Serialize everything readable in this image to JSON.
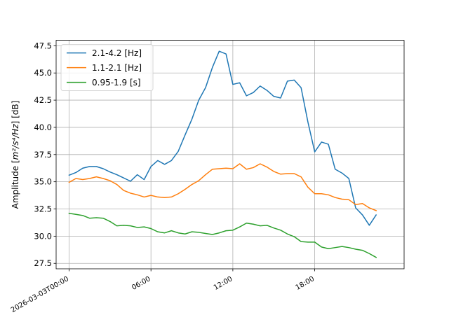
{
  "chart_data": {
    "type": "line",
    "title": "",
    "xlabel": "",
    "ylabel_main": "Amplitude [",
    "ylabel_unit": "m²/s⁴/Hz",
    "ylabel_end": "] [dB]",
    "xlim": [
      "2026-03-02T23:03:00",
      "2026-03-04T00:33:00"
    ],
    "ylim": [
      27.0,
      48.0
    ],
    "grid": true,
    "legend_position": "upper-left",
    "yticks": [
      27.5,
      30.0,
      32.5,
      35.0,
      37.5,
      40.0,
      42.5,
      45.0,
      47.5
    ],
    "ytick_labels": [
      "27.5",
      "30.0",
      "32.5",
      "35.0",
      "37.5",
      "40.0",
      "42.5",
      "45.0",
      "47.5"
    ],
    "xticks": [
      "2026-03-03T00:00:00",
      "2026-03-03T06:00:00",
      "2026-03-03T12:00:00",
      "2026-03-03T18:00:00"
    ],
    "xtick_labels": [
      "2026-03-03T00:00",
      "06:00",
      "12:00",
      "18:00"
    ],
    "x": [
      "2026-03-03T00:00:00",
      "2026-03-03T00:30:00",
      "2026-03-03T01:00:00",
      "2026-03-03T01:30:00",
      "2026-03-03T02:00:00",
      "2026-03-03T02:30:00",
      "2026-03-03T03:00:00",
      "2026-03-03T03:30:00",
      "2026-03-03T04:00:00",
      "2026-03-03T04:30:00",
      "2026-03-03T05:00:00",
      "2026-03-03T05:30:00",
      "2026-03-03T06:00:00",
      "2026-03-03T06:30:00",
      "2026-03-03T07:00:00",
      "2026-03-03T07:30:00",
      "2026-03-03T08:00:00",
      "2026-03-03T08:30:00",
      "2026-03-03T09:00:00",
      "2026-03-03T09:30:00",
      "2026-03-03T10:00:00",
      "2026-03-03T10:30:00",
      "2026-03-03T11:00:00",
      "2026-03-03T11:30:00",
      "2026-03-03T12:00:00",
      "2026-03-03T12:30:00",
      "2026-03-03T13:00:00",
      "2026-03-03T13:30:00",
      "2026-03-03T14:00:00",
      "2026-03-03T14:30:00",
      "2026-03-03T15:00:00",
      "2026-03-03T15:30:00",
      "2026-03-03T16:00:00",
      "2026-03-03T16:30:00",
      "2026-03-03T17:00:00",
      "2026-03-03T17:30:00",
      "2026-03-03T18:00:00",
      "2026-03-03T18:30:00",
      "2026-03-03T19:00:00",
      "2026-03-03T19:30:00",
      "2026-03-03T20:00:00",
      "2026-03-03T20:30:00",
      "2026-03-03T21:00:00",
      "2026-03-03T21:30:00",
      "2026-03-03T22:00:00",
      "2026-03-03T22:30:00"
    ],
    "series": [
      {
        "name": "2.1-4.2 [Hz]",
        "color": "#1f77b4",
        "values": [
          35.6,
          35.85,
          36.25,
          36.4,
          36.4,
          36.2,
          35.9,
          35.65,
          35.35,
          35.05,
          35.65,
          35.2,
          36.4,
          36.95,
          36.6,
          36.95,
          37.8,
          39.3,
          40.75,
          42.5,
          43.65,
          45.5,
          47.0,
          46.75,
          43.95,
          44.1,
          42.9,
          43.2,
          43.8,
          43.4,
          42.85,
          42.7,
          44.25,
          44.35,
          43.65,
          40.5,
          37.75,
          38.65,
          38.45,
          36.15,
          35.8,
          35.3,
          32.6,
          31.95,
          31.0,
          31.95
        ]
      },
      {
        "name": "1.1-2.1 [Hz]",
        "color": "#ff7f0e",
        "values": [
          34.95,
          35.3,
          35.2,
          35.3,
          35.45,
          35.3,
          35.1,
          34.75,
          34.2,
          33.95,
          33.8,
          33.6,
          33.75,
          33.6,
          33.55,
          33.6,
          33.9,
          34.3,
          34.75,
          35.1,
          35.65,
          36.15,
          36.2,
          36.25,
          36.2,
          36.65,
          36.15,
          36.3,
          36.65,
          36.35,
          35.95,
          35.7,
          35.75,
          35.75,
          35.45,
          34.5,
          33.9,
          33.9,
          33.8,
          33.55,
          33.4,
          33.35,
          32.9,
          33.0,
          32.6,
          32.35
        ]
      },
      {
        "name": "0.95-1.9 [s]",
        "color": "#2ca02c",
        "values": [
          32.1,
          32.0,
          31.9,
          31.65,
          31.7,
          31.65,
          31.35,
          30.95,
          31.0,
          30.95,
          30.8,
          30.85,
          30.7,
          30.4,
          30.3,
          30.5,
          30.3,
          30.2,
          30.4,
          30.35,
          30.25,
          30.15,
          30.3,
          30.5,
          30.55,
          30.85,
          31.2,
          31.1,
          30.95,
          31.0,
          30.75,
          30.55,
          30.2,
          29.95,
          29.5,
          29.45,
          29.45,
          29.0,
          28.85,
          28.95,
          29.05,
          28.95,
          28.8,
          28.7,
          28.4,
          28.05
        ]
      }
    ]
  }
}
